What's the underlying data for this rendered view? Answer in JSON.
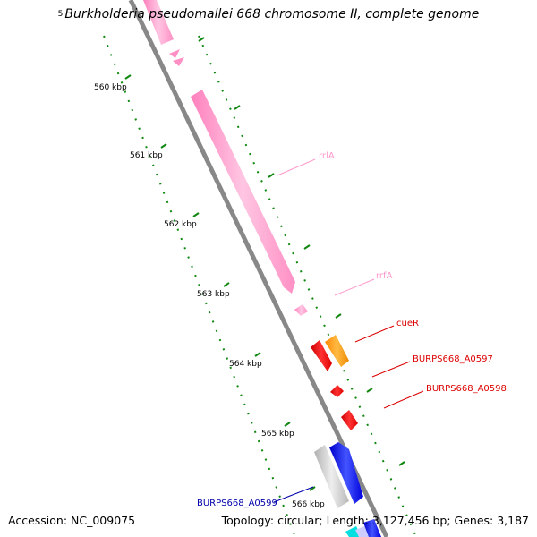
{
  "header": {
    "prefix": "5",
    "title": "Burkholderia pseudomallei 668 chromosome II, complete genome"
  },
  "footer": {
    "accession": "Accession: NC_009075",
    "summary": "Topology: circular; Length: 3,127,456 bp; Genes: 3,187"
  },
  "scale": {
    "unit": "kbp",
    "ticks": [
      "560 kbp",
      "561 kbp",
      "562 kbp",
      "563 kbp",
      "564 kbp",
      "565 kbp",
      "566 kbp"
    ]
  },
  "genes": [
    {
      "id": "rrlA",
      "label": "rrlA",
      "type": "rRNA",
      "strand": "+",
      "color": "#ffa8d0",
      "labelColor": "#ff99cc"
    },
    {
      "id": "rrfA",
      "label": "rrfA",
      "type": "rRNA",
      "strand": "+",
      "color": "#ffa8d0",
      "labelColor": "#ff99cc"
    },
    {
      "id": "cueR",
      "label": "cueR",
      "type": "CDS",
      "strand": "+",
      "color": "#ff9900",
      "labelColor": "#dd0000"
    },
    {
      "id": "BURPS668_A0597",
      "label": "BURPS668_A0597",
      "type": "CDS",
      "strand": "-",
      "color": "#ee0000",
      "labelColor": "#dd0000"
    },
    {
      "id": "BURPS668_A0598",
      "label": "BURPS668_A0598",
      "type": "CDS",
      "strand": "-",
      "color": "#ee0000",
      "labelColor": "#dd0000"
    },
    {
      "id": "BURPS668_A0599",
      "label": "BURPS668_A0599",
      "type": "CDS",
      "strand": "+",
      "color": "#1111ee",
      "labelColor": "#0000aa"
    }
  ],
  "colors": {
    "backbone": "#888888",
    "tick": "#118811",
    "rRNA": "#ffa8d0",
    "cds_red": "#ee0000",
    "cds_orange": "#ff9900",
    "cds_blue": "#1111ee",
    "cds_gray": "#cccccc",
    "cds_cyan": "#00e0e0"
  }
}
